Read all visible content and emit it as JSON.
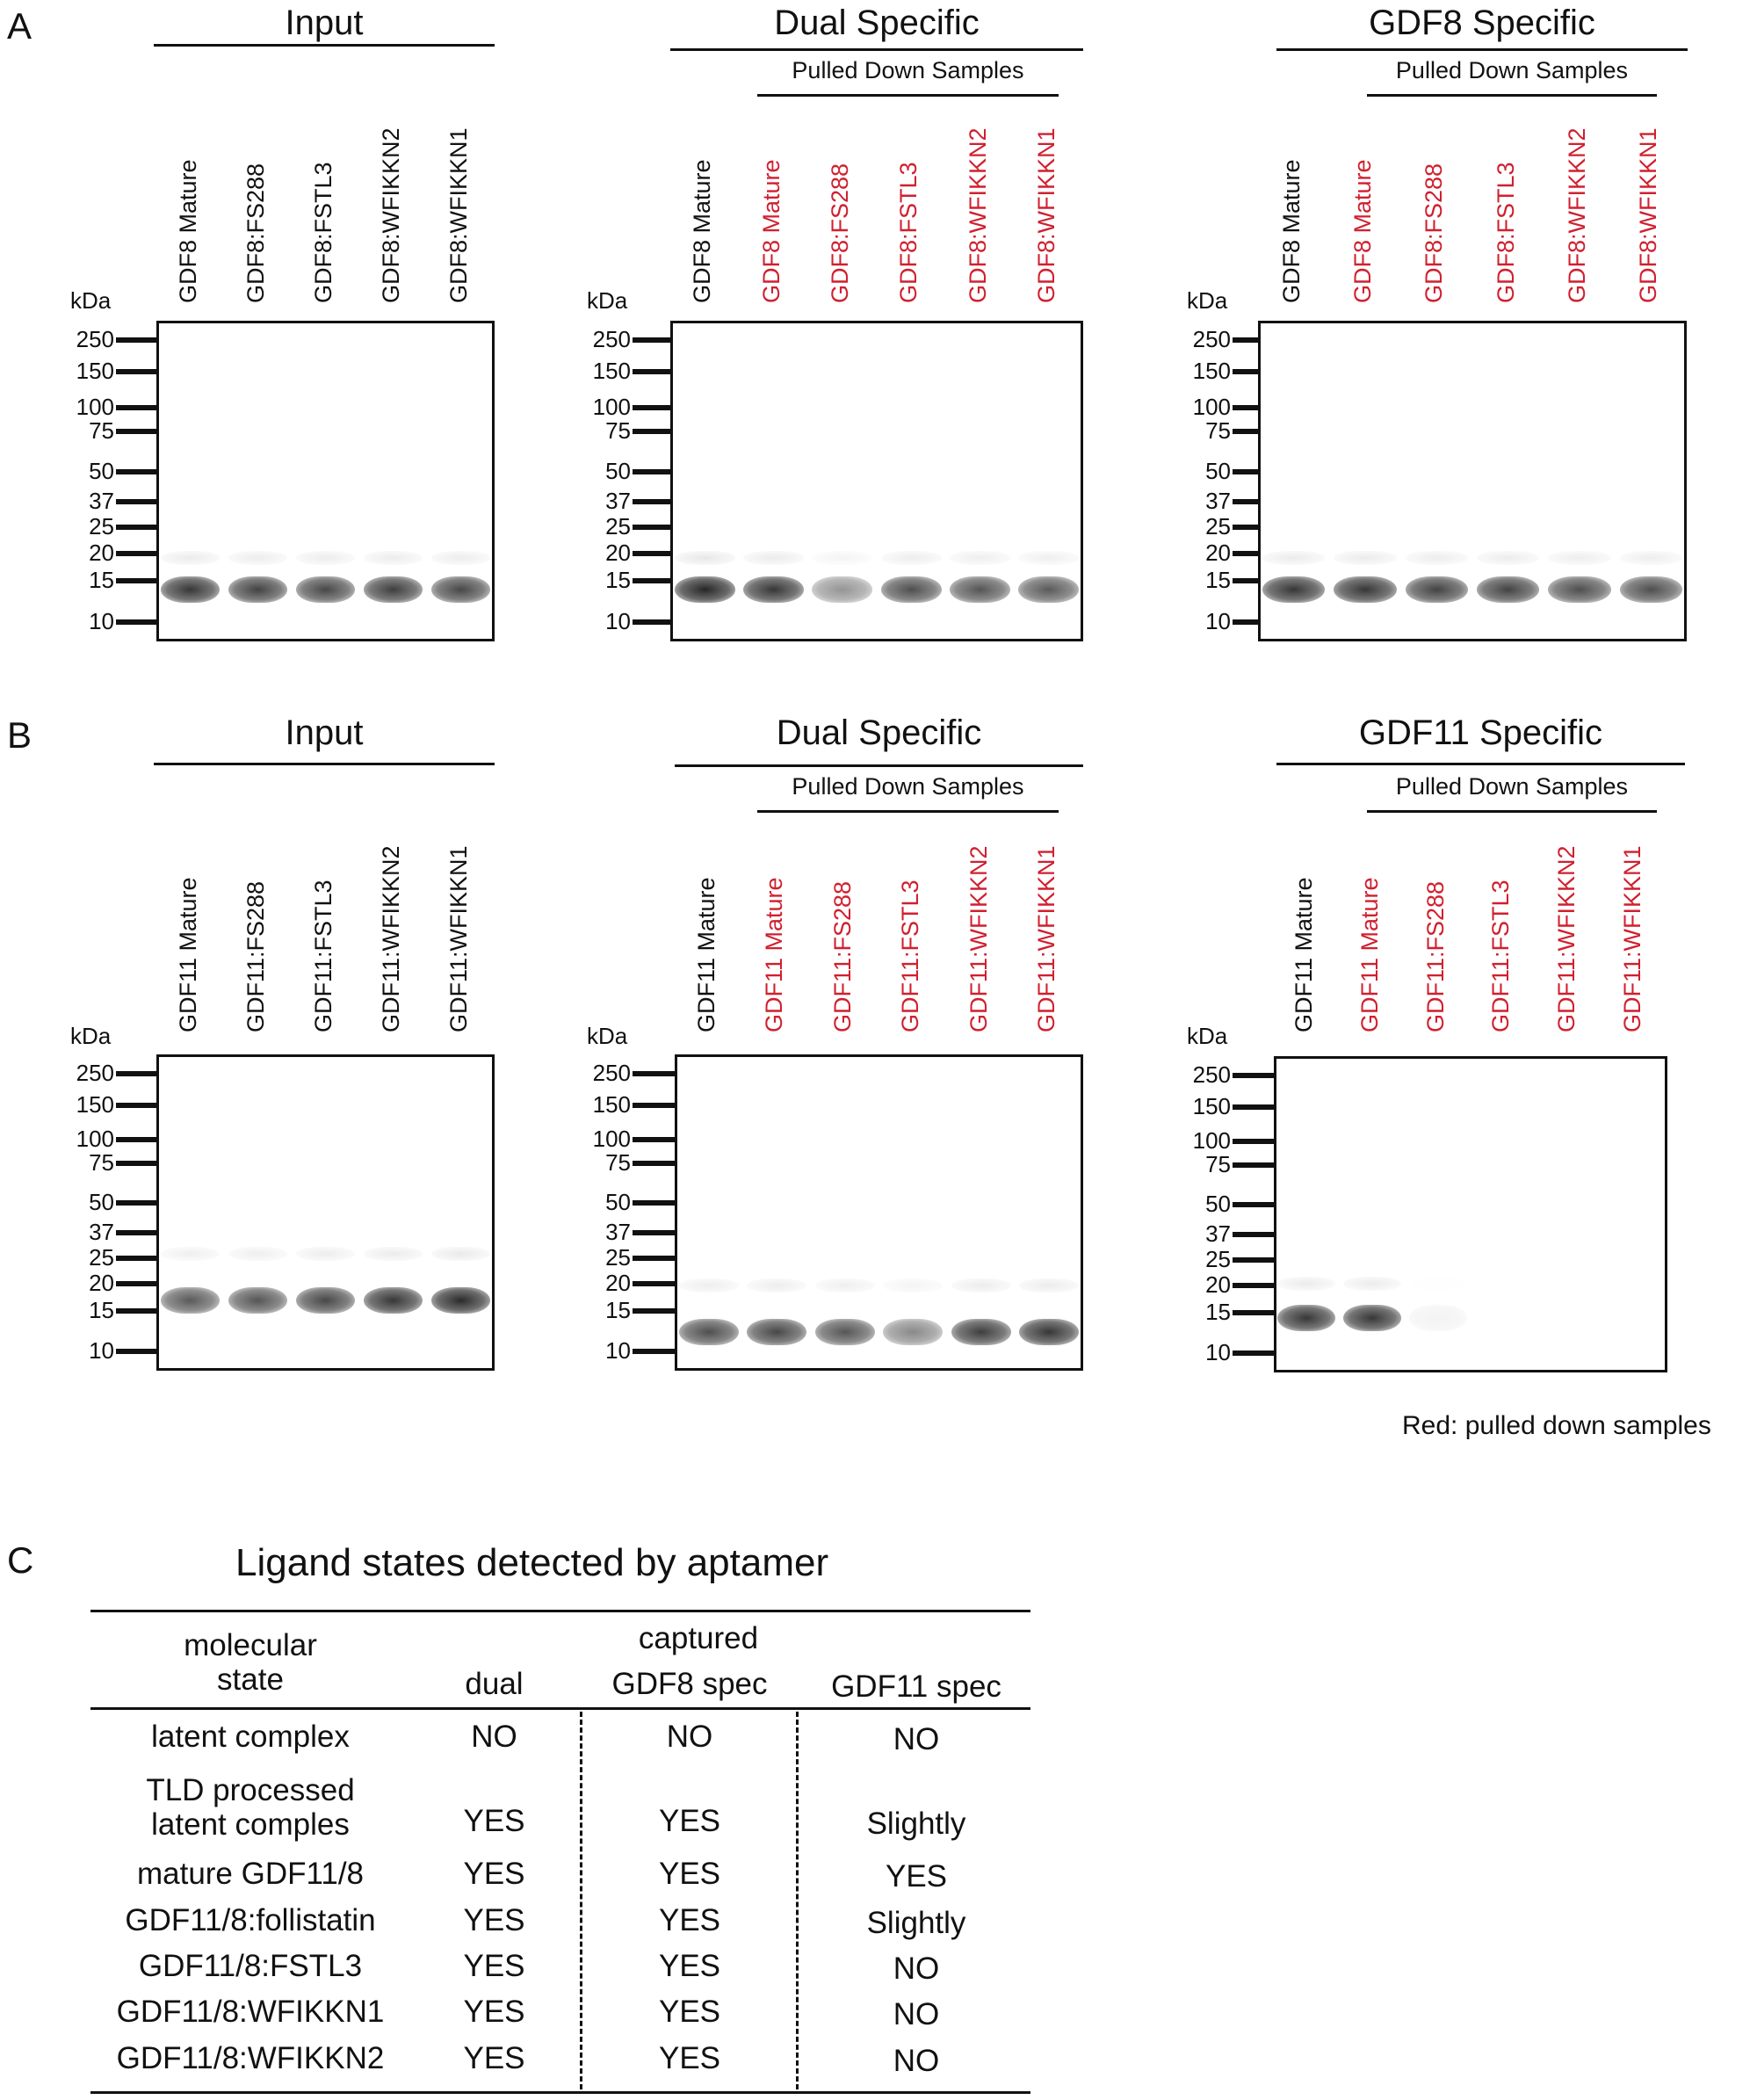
{
  "panel_labels": {
    "a": "A",
    "b": "B",
    "c": "C"
  },
  "kda_label": "kDa",
  "mw_markers": [
    "250",
    "150",
    "100",
    "75",
    "50",
    "37",
    "25",
    "20",
    "15",
    "10"
  ],
  "pulled_down_label": "Pulled Down Samples",
  "panel_a": {
    "input": {
      "title": "Input",
      "lanes": [
        "GDF8 Mature",
        "GDF8:FS288",
        "GDF8:FSTL3",
        "GDF8:WFIKKN2",
        "GDF8:WFIKKN1"
      ]
    },
    "dual": {
      "title": "Dual Specific",
      "lanes": [
        "GDF8 Mature",
        "GDF8 Mature",
        "GDF8:FS288",
        "GDF8:FSTL3",
        "GDF8:WFIKKN2",
        "GDF8:WFIKKN1"
      ]
    },
    "specific": {
      "title": "GDF8 Specific",
      "lanes": [
        "GDF8 Mature",
        "GDF8 Mature",
        "GDF8:FS288",
        "GDF8:FSTL3",
        "GDF8:WFIKKN2",
        "GDF8:WFIKKN1"
      ]
    }
  },
  "panel_b": {
    "input": {
      "title": "Input",
      "lanes": [
        "GDF11 Mature",
        "GDF11:FS288",
        "GDF11:FSTL3",
        "GDF11:WFIKKN2",
        "GDF11:WFIKKN1"
      ]
    },
    "dual": {
      "title": "Dual Specific",
      "lanes": [
        "GDF11 Mature",
        "GDF11 Mature",
        "GDF11:FS288",
        "GDF11:FSTL3",
        "GDF11:WFIKKN2",
        "GDF11:WFIKKN1"
      ]
    },
    "specific": {
      "title": "GDF11 Specific",
      "lanes": [
        "GDF11 Mature",
        "GDF11 Mature",
        "GDF11:FS288",
        "GDF11:FSTL3",
        "GDF11:WFIKKN2",
        "GDF11:WFIKKN1"
      ]
    }
  },
  "legend_note": "Red: pulled down samples",
  "colors": {
    "pulled_down": "#d0202f",
    "text": "#111111"
  },
  "table": {
    "title": "Ligand states detected by aptamer",
    "header_state": "molecular\nstate",
    "header_captured": "captured",
    "header_dual": "dual",
    "header_gdf8": "GDF8 spec",
    "header_gdf11": "GDF11 spec",
    "rows": [
      {
        "state": "latent complex",
        "dual": "NO",
        "gdf8": "NO",
        "gdf11": "NO"
      },
      {
        "state": "TLD processed\nlatent comples",
        "dual": "YES",
        "gdf8": "YES",
        "gdf11": "Slightly"
      },
      {
        "state": "mature GDF11/8",
        "dual": "YES",
        "gdf8": "YES",
        "gdf11": "YES"
      },
      {
        "state": "GDF11/8:follistatin",
        "dual": "YES",
        "gdf8": "YES",
        "gdf11": "Slightly"
      },
      {
        "state": "GDF11/8:FSTL3",
        "dual": "YES",
        "gdf8": "YES",
        "gdf11": "NO"
      },
      {
        "state": "GDF11/8:WFIKKN1",
        "dual": "YES",
        "gdf8": "YES",
        "gdf11": "NO"
      },
      {
        "state": "GDF11/8:WFIKKN2",
        "dual": "YES",
        "gdf8": "YES",
        "gdf11": "NO"
      }
    ]
  }
}
